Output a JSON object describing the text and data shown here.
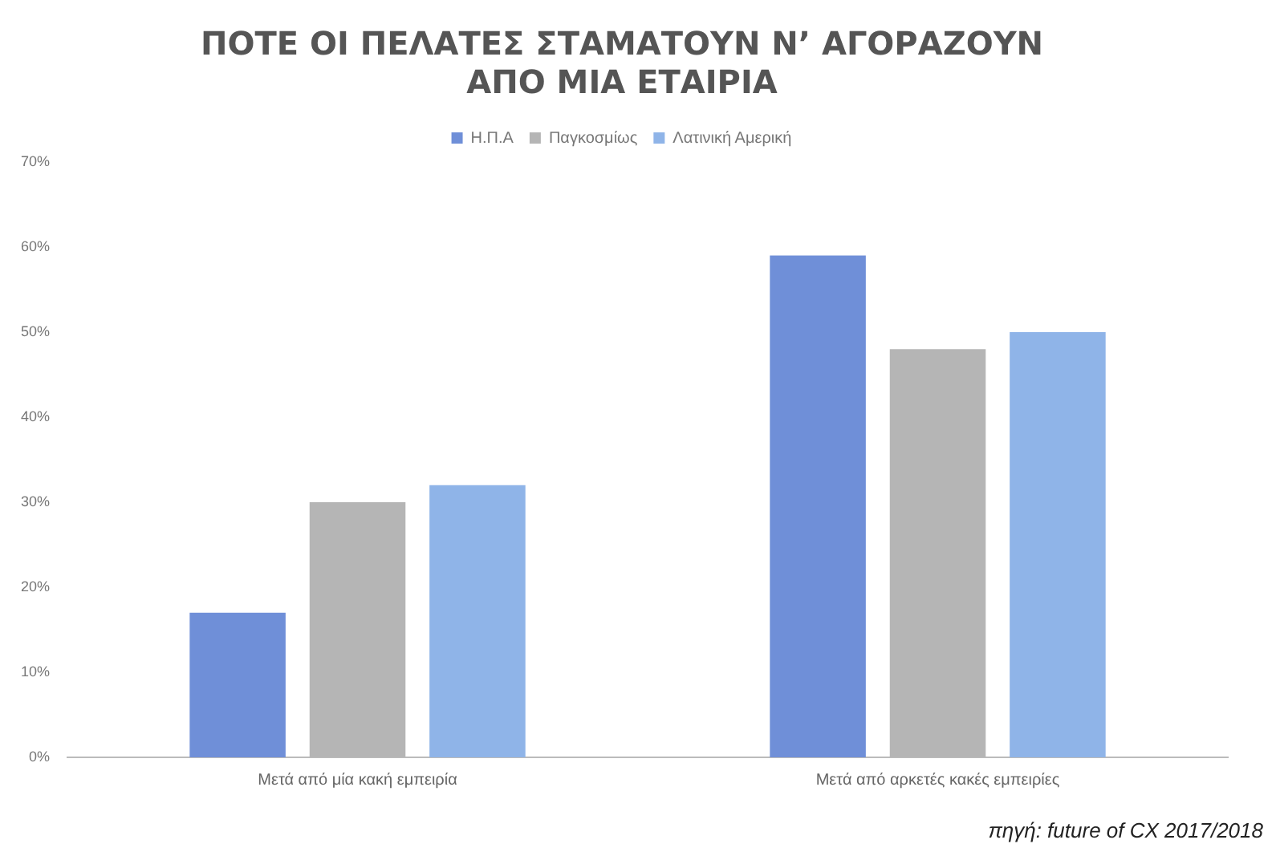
{
  "chart_data": {
    "type": "bar",
    "title": "ΠΟΤΕ ΟΙ ΠΕΛΑΤΕΣ ΣΤΑΜΑΤΟΥΝ Ν’ ΑΓΟΡΑΖΟΥΝ\nΑΠΟ ΜΙΑ ΕΤΑΙΡΙΑ",
    "categories": [
      "Μετά από μία κακή εμπειρία",
      "Μετά από αρκετές κακές εμπειρίες"
    ],
    "series": [
      {
        "name": "Η.Π.Α",
        "color": "#6f8fd8",
        "values": [
          17,
          59
        ]
      },
      {
        "name": "Παγκοσμίως",
        "color": "#b5b5b5",
        "values": [
          30,
          48
        ]
      },
      {
        "name": "Λατινική Αμερική",
        "color": "#8fb4e8",
        "values": [
          32,
          50
        ]
      }
    ],
    "ylim": [
      0,
      70
    ],
    "yticks": [
      {
        "value": 0,
        "label": "0%"
      },
      {
        "value": 10,
        "label": "10%"
      },
      {
        "value": 20,
        "label": "20%"
      },
      {
        "value": 30,
        "label": "30%"
      },
      {
        "value": 40,
        "label": "40%"
      },
      {
        "value": 50,
        "label": "50%"
      },
      {
        "value": 60,
        "label": "60%"
      },
      {
        "value": 70,
        "label": "70%"
      }
    ],
    "grid": false,
    "legend": "top",
    "annotations": [
      "πηγή: future of CX 2017/2018"
    ]
  }
}
